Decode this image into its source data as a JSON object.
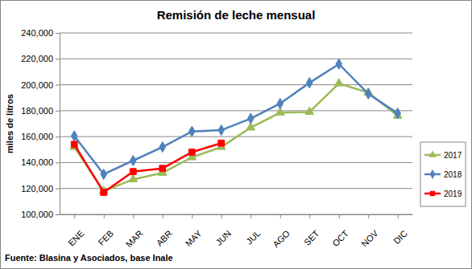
{
  "chart_data": {
    "type": "line",
    "title": "Remisión de leche mensual",
    "y_label": "miles de litros",
    "annotation": "Fuente: Blasina y Asociados, base Inale",
    "categories": [
      "ENE",
      "FEB",
      "MAR",
      "ABR",
      "MAY",
      "JUN",
      "JUL",
      "AGO",
      "SET",
      "OCT",
      "NOV",
      "DIC"
    ],
    "series": [
      {
        "name": "2017",
        "color": "#9bbb59",
        "marker": "triangle",
        "values": [
          152000,
          118000,
          127000,
          132000,
          144000,
          152000,
          167000,
          178500,
          179000,
          201000,
          194000,
          176000
        ]
      },
      {
        "name": "2018",
        "color": "#4f81bd",
        "marker": "diamond",
        "values": [
          160500,
          131000,
          141500,
          152000,
          164000,
          165000,
          174000,
          185500,
          201500,
          216000,
          193000,
          178000
        ]
      },
      {
        "name": "2019",
        "color": "#ff0000",
        "marker": "square",
        "values": [
          154000,
          117000,
          133000,
          135500,
          148000,
          155000,
          null,
          null,
          null,
          null,
          null,
          null
        ]
      }
    ],
    "ylim": [
      100000,
      240000
    ],
    "yticks": [
      {
        "value": 100000,
        "label": "100,000"
      },
      {
        "value": 120000,
        "label": "120,000"
      },
      {
        "value": 140000,
        "label": "140,000"
      },
      {
        "value": 160000,
        "label": "160,000"
      },
      {
        "value": 180000,
        "label": "180,000"
      },
      {
        "value": 200000,
        "label": "200,000"
      },
      {
        "value": 220000,
        "label": "220,000"
      },
      {
        "value": 240000,
        "label": "240,000"
      }
    ],
    "grid": true,
    "legend": "right"
  }
}
